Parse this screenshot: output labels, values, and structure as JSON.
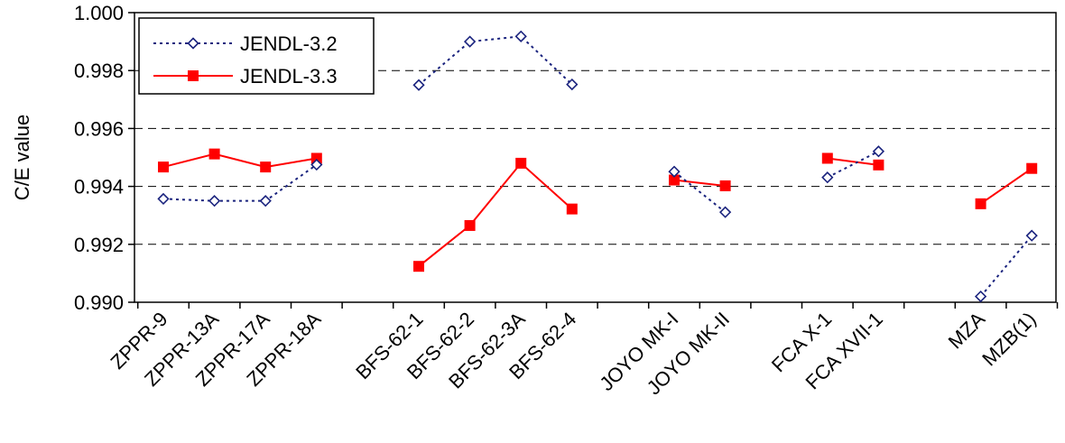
{
  "chart_data": {
    "type": "line",
    "title": "",
    "xlabel": "",
    "ylabel": "C/E value",
    "ylim": [
      0.99,
      1.0
    ],
    "yticks": [
      "0.990",
      "0.992",
      "0.994",
      "0.996",
      "0.998",
      "1.000"
    ],
    "grid": true,
    "legend_position": "top-left",
    "categories": [
      "ZPPR-9",
      "ZPPR-13A",
      "ZPPR-17A",
      "ZPPR-18A",
      "",
      "BFS-62-1",
      "BFS-62-2",
      "BFS-62-3A",
      "BFS-62-4",
      "",
      "JOYO MK-I",
      "JOYO MK-II",
      "",
      "FCA X-1",
      "FCA XVII-1",
      "",
      "MZA",
      "MZB(1)"
    ],
    "series": [
      {
        "name": "JENDL-3.2",
        "color": "#1a237e",
        "style": "dotted",
        "marker": "open-diamond",
        "values": [
          0.99357,
          0.9935,
          0.9935,
          0.99475,
          null,
          0.9975,
          0.999,
          0.99918,
          0.99752,
          null,
          0.99451,
          0.99311,
          null,
          0.99431,
          0.99521,
          null,
          0.9902,
          0.9923
        ]
      },
      {
        "name": "JENDL-3.3",
        "color": "#ff0000",
        "style": "solid",
        "marker": "filled-square",
        "values": [
          0.99467,
          0.99512,
          0.99467,
          0.99497,
          null,
          0.99124,
          0.99265,
          0.9948,
          0.99322,
          null,
          0.99422,
          0.99402,
          null,
          0.99497,
          0.99474,
          null,
          0.9934,
          0.99462
        ]
      }
    ]
  }
}
